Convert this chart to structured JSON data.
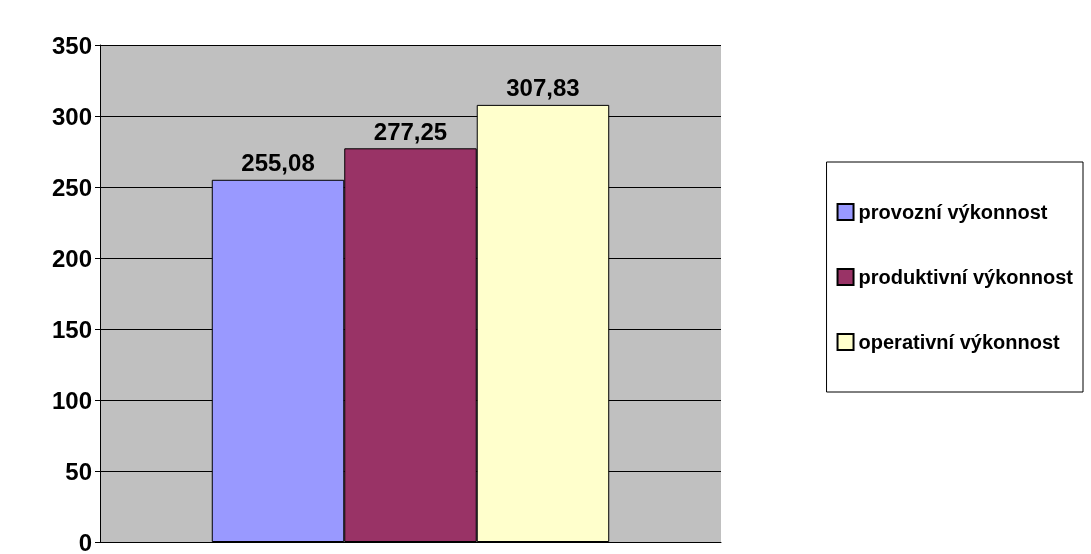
{
  "chart_data": {
    "type": "bar",
    "categories": [
      null
    ],
    "series": [
      {
        "name": "provozní výkonnost",
        "color": "#9999ff",
        "values": [
          255.08
        ],
        "value_labels": [
          "255,08"
        ]
      },
      {
        "name": "produktivní výkonnost",
        "color": "#993366",
        "values": [
          277.25
        ],
        "value_labels": [
          "277,25"
        ]
      },
      {
        "name": "operativní výkonnost",
        "color": "#ffffcc",
        "values": [
          307.83
        ],
        "value_labels": [
          "307,83"
        ]
      }
    ],
    "ylim": [
      0,
      350
    ],
    "yticks": [
      0,
      50,
      100,
      150,
      200,
      250,
      300,
      350
    ],
    "grid": "y",
    "legend": "right"
  }
}
